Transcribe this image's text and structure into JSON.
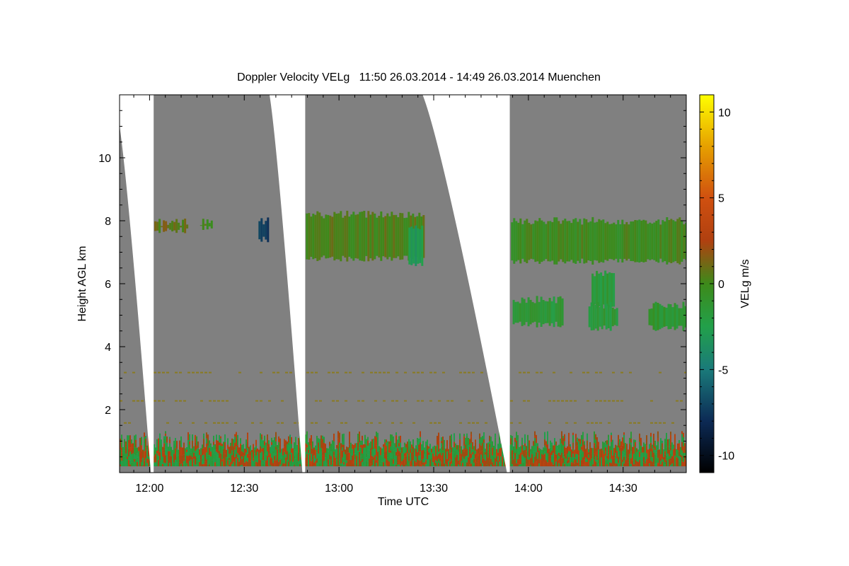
{
  "chart_data": {
    "type": "heatmap",
    "title": "Doppler Velocity VELg   11:50 26.03.2014 - 14:49 26.03.2014 Muenchen",
    "xlabel": "Time UTC",
    "ylabel": "Height AGL km",
    "colorbar_label": "VELg m/s",
    "x_range_minutes": [
      710.5,
      890
    ],
    "y_range_km": [
      0,
      12
    ],
    "x_ticks": [
      {
        "label": "12:00",
        "minutes": 720
      },
      {
        "label": "12:30",
        "minutes": 750
      },
      {
        "label": "13:00",
        "minutes": 780
      },
      {
        "label": "13:30",
        "minutes": 810
      },
      {
        "label": "14:00",
        "minutes": 840
      },
      {
        "label": "14:30",
        "minutes": 870
      }
    ],
    "y_ticks": [
      {
        "label": "2",
        "value": 2
      },
      {
        "label": "4",
        "value": 4
      },
      {
        "label": "6",
        "value": 6
      },
      {
        "label": "8",
        "value": 8
      },
      {
        "label": "10",
        "value": 10
      }
    ],
    "colorbar_ticks": [
      {
        "label": "10",
        "value": 10
      },
      {
        "label": "5",
        "value": 5
      },
      {
        "label": "0",
        "value": 0
      },
      {
        "label": "-5",
        "value": -5
      },
      {
        "label": "-10",
        "value": -10
      }
    ],
    "colorbar_range": [
      -11,
      11
    ],
    "colormap_stops": [
      {
        "value": -11,
        "color": "#000000"
      },
      {
        "value": -8,
        "color": "#0c2a55"
      },
      {
        "value": -5,
        "color": "#1a7a7a"
      },
      {
        "value": -2.5,
        "color": "#22a04a"
      },
      {
        "value": 0,
        "color": "#3d8a1a"
      },
      {
        "value": 2.5,
        "color": "#b04010"
      },
      {
        "value": 5,
        "color": "#d05010"
      },
      {
        "value": 8,
        "color": "#e6a000"
      },
      {
        "value": 11,
        "color": "#ffff00"
      }
    ],
    "background_color": "#808080",
    "scan_gaps": [
      {
        "start_minutes": 710.5,
        "end_minutes": 721.3,
        "top_km_at_start": 11.0
      },
      {
        "start_minutes": 758.0,
        "end_minutes": 769.3,
        "top_km_at_start": 12.0
      },
      {
        "start_minutes": 806.5,
        "end_minutes": 834.1,
        "top_km_at_start": 12.0
      }
    ],
    "cloud_regions": [
      {
        "label": "upper cloud 1",
        "t": [
          721.5,
          732
        ],
        "h": [
          7.7,
          7.95
        ],
        "velocity": 0.8
      },
      {
        "label": "upper cloud 1b",
        "t": [
          736,
          740
        ],
        "h": [
          7.8,
          7.95
        ],
        "velocity": 0.5
      },
      {
        "label": "downdraft patch 1",
        "t": [
          754.5,
          757.5
        ],
        "h": [
          7.4,
          8.0
        ],
        "velocity": -7.5
      },
      {
        "label": "upper cloud 2",
        "t": [
          769.5,
          807
        ],
        "h": [
          6.8,
          8.2
        ],
        "velocity": 0.3
      },
      {
        "label": "downdraft patch 2",
        "t": [
          802,
          806.5
        ],
        "h": [
          6.6,
          7.8
        ],
        "velocity": -3.0
      },
      {
        "label": "upper cloud 3",
        "t": [
          834.5,
          890
        ],
        "h": [
          6.7,
          8.0
        ],
        "velocity": -0.2
      },
      {
        "label": "mid cloud 1",
        "t": [
          835,
          851
        ],
        "h": [
          4.7,
          5.5
        ],
        "velocity": -1.5
      },
      {
        "label": "mid cloud 2",
        "t": [
          860,
          867
        ],
        "h": [
          5.3,
          6.3
        ],
        "velocity": -1.8
      },
      {
        "label": "mid cloud 3",
        "t": [
          859,
          868
        ],
        "h": [
          4.6,
          5.3
        ],
        "velocity": -1.6
      },
      {
        "label": "mid cloud 4",
        "t": [
          878,
          890
        ],
        "h": [
          4.6,
          5.3
        ],
        "velocity": -1.2
      }
    ],
    "boundary_layer": {
      "h": [
        0.2,
        1.2
      ],
      "velocities": [
        -2.0,
        2.5
      ]
    }
  }
}
